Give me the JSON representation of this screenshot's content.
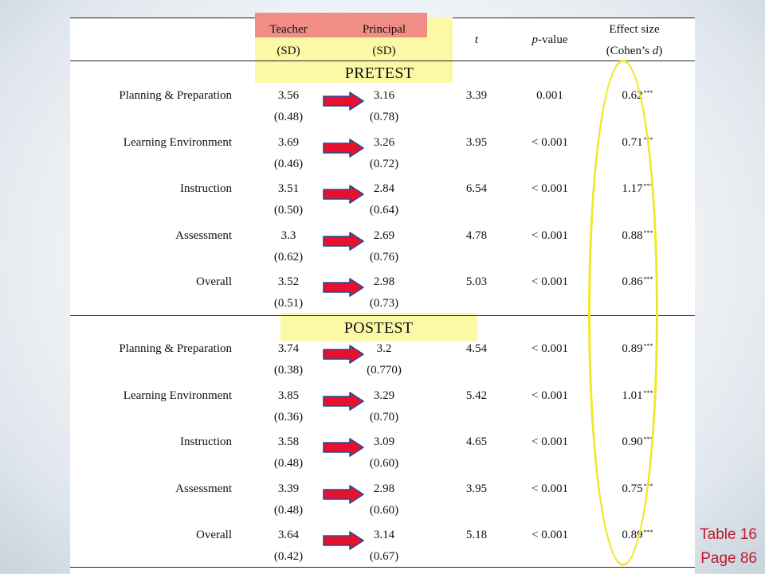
{
  "header": {
    "col1_top": "Teacher",
    "col1_sub": "(SD)",
    "col2_top": "Principal",
    "col2_sub": "(SD)",
    "t": "t",
    "p_prefix": "p",
    "p_suffix": "-value",
    "effect_top": "Effect size",
    "effect_sub_prefix": "(Cohen’s ",
    "effect_sub_d": "d",
    "effect_sub_suffix": ")"
  },
  "sections": [
    {
      "title": "PRETEST",
      "rows": [
        {
          "label": "Planning & Preparation",
          "teacher": "3.56",
          "teacher_sd": "(0.48)",
          "principal": "3.16",
          "principal_sd": "(0.78)",
          "t": "3.39",
          "p": "0.001",
          "d": "0.62",
          "sig": "***"
        },
        {
          "label": "Learning Environment",
          "teacher": "3.69",
          "teacher_sd": "(0.46)",
          "principal": "3.26",
          "principal_sd": "(0.72)",
          "t": "3.95",
          "p": "< 0.001",
          "d": "0.71",
          "sig": "***"
        },
        {
          "label": "Instruction",
          "teacher": "3.51",
          "teacher_sd": "(0.50)",
          "principal": "2.84",
          "principal_sd": "(0.64)",
          "t": "6.54",
          "p": "< 0.001",
          "d": "1.17",
          "sig": "***"
        },
        {
          "label": "Assessment",
          "teacher": "3.3",
          "teacher_sd": "(0.62)",
          "principal": "2.69",
          "principal_sd": "(0.76)",
          "t": "4.78",
          "p": "< 0.001",
          "d": "0.88",
          "sig": "***"
        },
        {
          "label": "Overall",
          "teacher": "3.52",
          "teacher_sd": "(0.51)",
          "principal": "2.98",
          "principal_sd": "(0.73)",
          "t": "5.03",
          "p": "< 0.001",
          "d": "0.86",
          "sig": "***"
        }
      ]
    },
    {
      "title": "POSTEST",
      "rows": [
        {
          "label": "Planning & Preparation",
          "teacher": "3.74",
          "teacher_sd": "(0.38)",
          "principal": "3.2",
          "principal_sd": "(0.770)",
          "t": "4.54",
          "p": "< 0.001",
          "d": "0.89",
          "sig": "***"
        },
        {
          "label": "Learning Environment",
          "teacher": "3.85",
          "teacher_sd": "(0.36)",
          "principal": "3.29",
          "principal_sd": "(0.70)",
          "t": "5.42",
          "p": "< 0.001",
          "d": "1.01",
          "sig": "***"
        },
        {
          "label": "Instruction",
          "teacher": "3.58",
          "teacher_sd": "(0.48)",
          "principal": "3.09",
          "principal_sd": "(0.60)",
          "t": "4.65",
          "p": "< 0.001",
          "d": "0.90",
          "sig": "***"
        },
        {
          "label": "Assessment",
          "teacher": "3.39",
          "teacher_sd": "(0.48)",
          "principal": "2.98",
          "principal_sd": "(0.60)",
          "t": "3.95",
          "p": "< 0.001",
          "d": "0.75",
          "sig": "***"
        },
        {
          "label": "Overall",
          "teacher": "3.64",
          "teacher_sd": "(0.42)",
          "principal": "3.14",
          "principal_sd": "(0.67)",
          "t": "5.18",
          "p": "< 0.001",
          "d": "0.89",
          "sig": "***"
        }
      ]
    }
  ],
  "note": {
    "table": "Table 16",
    "page": "Page 86"
  },
  "colors": {
    "highlight_yellow": "#fbf8a6",
    "highlight_red": "#f08e86",
    "arrow_red": "#e8112d",
    "arrow_blue": "#1f4e99",
    "ellipse_yellow": "#f3e62a",
    "note_red": "#c0182d"
  }
}
